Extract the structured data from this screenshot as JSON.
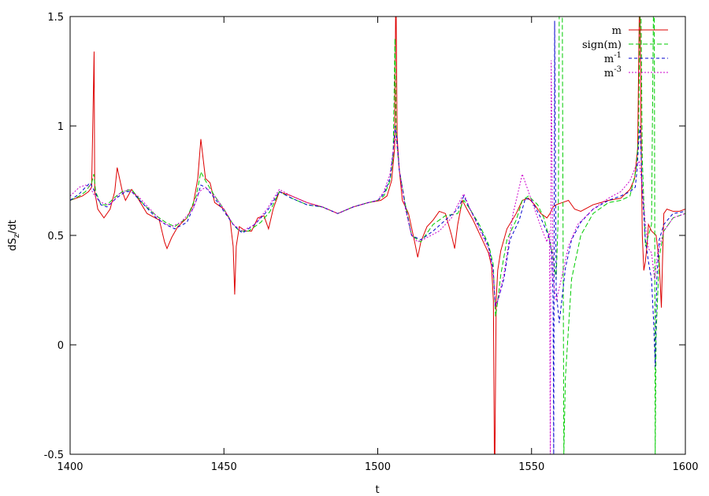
{
  "chart_data": {
    "type": "line",
    "title": "",
    "xlabel": "t",
    "ylabel": "dS_z/dt",
    "xlim": [
      1400,
      1600
    ],
    "ylim": [
      -0.5,
      1.5
    ],
    "xticks": [
      1400,
      1450,
      1500,
      1550,
      1600
    ],
    "xtick_labels": [
      "1400",
      "1450",
      "1500",
      "1550",
      "1600"
    ],
    "yticks": [
      -0.5,
      0,
      0.5,
      1,
      1.5
    ],
    "ytick_labels": [
      "-0.5",
      "0",
      "0.5",
      "1",
      "1.5"
    ],
    "grid": false,
    "legend_position": "top-right",
    "series": [
      {
        "name": "m",
        "name_base": "m",
        "name_sup": "",
        "color": "#dd0000",
        "dash": "solid",
        "x": [
          1400,
          1404,
          1406,
          1407,
          1407.8,
          1408,
          1409,
          1411,
          1413,
          1414.5,
          1415.3,
          1417,
          1418,
          1420,
          1422,
          1425,
          1429,
          1430.7,
          1431.5,
          1433,
          1435,
          1438,
          1440,
          1441.5,
          1442.5,
          1444,
          1445.5,
          1447,
          1450,
          1452,
          1453,
          1453.5,
          1454,
          1455,
          1457,
          1459,
          1461,
          1463,
          1464.5,
          1466,
          1468,
          1472,
          1477,
          1482,
          1487,
          1492,
          1497,
          1501,
          1503,
          1504.5,
          1505.5,
          1505.8,
          1506,
          1506.3,
          1507,
          1508,
          1510,
          1512,
          1513,
          1514,
          1516,
          1518,
          1520,
          1522,
          1523,
          1524,
          1525,
          1526,
          1527.5,
          1529,
          1531,
          1534,
          1536,
          1537,
          1537.6,
          1537.9,
          1538.1,
          1538.5,
          1539,
          1540,
          1542,
          1545,
          1547,
          1549,
          1551,
          1553,
          1555,
          1556,
          1557,
          1558,
          1560,
          1562,
          1564,
          1566,
          1570,
          1575,
          1579,
          1582,
          1583.5,
          1584.5,
          1585,
          1585.3,
          1585.6,
          1586,
          1586.5,
          1587,
          1587.5,
          1588,
          1589,
          1590.5,
          1591.5,
          1592.2,
          1592.6,
          1593,
          1594,
          1596,
          1598,
          1600
        ],
        "y": [
          0.66,
          0.68,
          0.7,
          0.72,
          1.34,
          0.7,
          0.62,
          0.58,
          0.62,
          0.7,
          0.81,
          0.7,
          0.66,
          0.71,
          0.67,
          0.6,
          0.57,
          0.47,
          0.44,
          0.49,
          0.54,
          0.58,
          0.64,
          0.76,
          0.94,
          0.76,
          0.74,
          0.65,
          0.62,
          0.57,
          0.45,
          0.23,
          0.45,
          0.54,
          0.52,
          0.52,
          0.58,
          0.59,
          0.53,
          0.62,
          0.7,
          0.68,
          0.65,
          0.63,
          0.6,
          0.63,
          0.65,
          0.66,
          0.68,
          0.75,
          0.9,
          1.5,
          1.5,
          0.95,
          0.8,
          0.66,
          0.6,
          0.47,
          0.4,
          0.47,
          0.54,
          0.57,
          0.61,
          0.6,
          0.55,
          0.5,
          0.44,
          0.55,
          0.66,
          0.62,
          0.57,
          0.48,
          0.42,
          0.36,
          0.2,
          -0.5,
          -0.5,
          0.2,
          0.34,
          0.43,
          0.53,
          0.6,
          0.66,
          0.67,
          0.64,
          0.6,
          0.58,
          0.6,
          0.63,
          0.64,
          0.65,
          0.66,
          0.62,
          0.61,
          0.64,
          0.66,
          0.67,
          0.71,
          0.76,
          0.9,
          1.5,
          1.5,
          0.95,
          0.5,
          0.34,
          0.38,
          0.45,
          0.55,
          0.52,
          0.5,
          0.38,
          0.17,
          0.4,
          0.6,
          0.62,
          0.61,
          0.61,
          0.62
        ]
      },
      {
        "name": "sign(m)",
        "name_base": "sign(m)",
        "name_sup": "",
        "color": "#00cc00",
        "dash": "6,3",
        "x": [
          1400,
          1403,
          1405,
          1407,
          1407.7,
          1408.3,
          1410,
          1412,
          1415,
          1417,
          1420,
          1424,
          1428,
          1431,
          1434,
          1438,
          1441,
          1442.5,
          1444,
          1447,
          1450,
          1453,
          1455,
          1458,
          1462,
          1465,
          1468,
          1472,
          1477,
          1482,
          1487,
          1492,
          1497,
          1500,
          1502,
          1504,
          1505,
          1505.6,
          1506,
          1507,
          1509,
          1511,
          1514,
          1518,
          1522,
          1526,
          1528,
          1530,
          1533,
          1536,
          1537.5,
          1538.3,
          1539,
          1540,
          1542,
          1545,
          1547,
          1549,
          1552,
          1554,
          1555.5,
          1556.3,
          1557,
          1558,
          1558.7,
          1559,
          1560,
          1560.5,
          1561,
          1563,
          1566,
          1570,
          1575,
          1579,
          1582,
          1584,
          1584.8,
          1585.2,
          1585.6,
          1586,
          1587,
          1588,
          1589,
          1589.6,
          1589.9,
          1590.2,
          1590.5,
          1591.5,
          1593,
          1596,
          1600
        ],
        "y": [
          0.66,
          0.68,
          0.7,
          0.74,
          0.78,
          0.7,
          0.64,
          0.64,
          0.68,
          0.7,
          0.71,
          0.64,
          0.59,
          0.56,
          0.54,
          0.58,
          0.68,
          0.79,
          0.75,
          0.68,
          0.62,
          0.55,
          0.52,
          0.52,
          0.56,
          0.61,
          0.7,
          0.67,
          0.64,
          0.63,
          0.6,
          0.63,
          0.65,
          0.66,
          0.68,
          0.75,
          0.86,
          1.4,
          0.95,
          0.8,
          0.64,
          0.5,
          0.47,
          0.55,
          0.59,
          0.6,
          0.66,
          0.62,
          0.55,
          0.46,
          0.37,
          0.13,
          0.2,
          0.32,
          0.48,
          0.57,
          0.66,
          0.68,
          0.64,
          0.58,
          0.5,
          0.45,
          0.4,
          0.3,
          0.6,
          1.5,
          1.5,
          -0.5,
          -0.15,
          0.3,
          0.5,
          0.6,
          0.65,
          0.66,
          0.68,
          0.8,
          0.95,
          1.5,
          1.5,
          0.85,
          0.45,
          0.5,
          0.55,
          1.5,
          1.5,
          -0.5,
          0.05,
          0.4,
          0.52,
          0.58,
          0.6
        ]
      },
      {
        "name": "m^-1",
        "name_base": "m",
        "name_sup": "-1",
        "color": "#0000cc",
        "dash": "4,3",
        "x": [
          1400,
          1403,
          1405,
          1406.5,
          1408,
          1410,
          1412,
          1415,
          1418,
          1420,
          1424,
          1428,
          1431,
          1434,
          1438,
          1441,
          1442.5,
          1444,
          1447,
          1450,
          1453,
          1456,
          1460,
          1464,
          1468,
          1472,
          1477,
          1482,
          1487,
          1492,
          1497,
          1500,
          1502,
          1504,
          1505,
          1505.6,
          1506.2,
          1507,
          1509,
          1511,
          1514,
          1518,
          1522,
          1526,
          1528,
          1530,
          1533,
          1536,
          1537.5,
          1538.2,
          1539,
          1541,
          1543,
          1546,
          1548,
          1550,
          1553,
          1555.5,
          1556.6,
          1557,
          1557.2,
          1557.5,
          1558,
          1559,
          1561,
          1563,
          1566,
          1570,
          1575,
          1579,
          1582,
          1583.7,
          1584.3,
          1584.8,
          1585.3,
          1586,
          1587,
          1588,
          1589,
          1589.7,
          1590.2,
          1590.7,
          1591.5,
          1593,
          1596,
          1600
        ],
        "y": [
          0.66,
          0.69,
          0.72,
          0.74,
          0.7,
          0.64,
          0.63,
          0.67,
          0.7,
          0.7,
          0.64,
          0.58,
          0.55,
          0.53,
          0.56,
          0.66,
          0.73,
          0.72,
          0.67,
          0.61,
          0.55,
          0.51,
          0.55,
          0.61,
          0.7,
          0.67,
          0.64,
          0.63,
          0.6,
          0.63,
          0.65,
          0.66,
          0.69,
          0.76,
          0.88,
          1.0,
          0.95,
          0.8,
          0.63,
          0.5,
          0.48,
          0.52,
          0.57,
          0.62,
          0.68,
          0.62,
          0.54,
          0.45,
          0.35,
          0.18,
          0.2,
          0.3,
          0.48,
          0.57,
          0.67,
          0.66,
          0.58,
          0.5,
          0.42,
          0.2,
          -0.5,
          1.48,
          0.25,
          0.1,
          0.35,
          0.48,
          0.56,
          0.62,
          0.66,
          0.68,
          0.7,
          0.72,
          0.8,
          0.92,
          1.0,
          0.7,
          0.48,
          0.38,
          0.3,
          0.1,
          -0.1,
          0.3,
          0.48,
          0.55,
          0.6,
          0.61
        ]
      },
      {
        "name": "m^-3",
        "name_base": "m",
        "name_sup": "-3",
        "color": "#cc00cc",
        "dash": "2,2",
        "x": [
          1400,
          1403,
          1405,
          1406.5,
          1408,
          1410,
          1413,
          1416,
          1419,
          1422,
          1426,
          1430,
          1433,
          1436,
          1440,
          1442,
          1444,
          1447,
          1450,
          1453,
          1456,
          1460,
          1464,
          1468,
          1472,
          1477,
          1482,
          1487,
          1492,
          1497,
          1500,
          1502,
          1504,
          1505.3,
          1506,
          1507,
          1509,
          1511,
          1513,
          1516,
          1520,
          1524,
          1526,
          1528,
          1530,
          1533,
          1536,
          1537.5,
          1538.3,
          1539,
          1541,
          1544,
          1547,
          1550,
          1553,
          1555,
          1555.8,
          1556.1,
          1556.4,
          1557,
          1558,
          1560,
          1562,
          1565,
          1570,
          1575,
          1579,
          1582,
          1584,
          1585,
          1586,
          1587,
          1588,
          1589,
          1590,
          1591,
          1593,
          1596,
          1600
        ],
        "y": [
          0.68,
          0.72,
          0.73,
          0.72,
          0.68,
          0.65,
          0.64,
          0.69,
          0.71,
          0.68,
          0.62,
          0.56,
          0.54,
          0.56,
          0.62,
          0.7,
          0.72,
          0.68,
          0.62,
          0.55,
          0.52,
          0.55,
          0.62,
          0.71,
          0.68,
          0.65,
          0.63,
          0.6,
          0.63,
          0.65,
          0.66,
          0.7,
          0.78,
          0.92,
          0.95,
          0.8,
          0.62,
          0.5,
          0.47,
          0.49,
          0.52,
          0.58,
          0.64,
          0.69,
          0.62,
          0.53,
          0.44,
          0.33,
          0.18,
          0.2,
          0.32,
          0.6,
          0.78,
          0.66,
          0.54,
          0.47,
          0.52,
          -0.5,
          1.3,
          0.3,
          0.2,
          0.32,
          0.45,
          0.55,
          0.62,
          0.67,
          0.7,
          0.75,
          0.82,
          0.84,
          0.72,
          0.55,
          0.44,
          0.42,
          0.3,
          0.42,
          0.52,
          0.58,
          0.6
        ]
      }
    ]
  }
}
